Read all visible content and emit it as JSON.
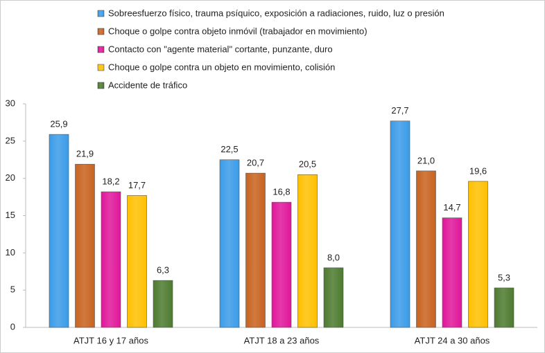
{
  "chart_data": {
    "type": "bar",
    "categories": [
      "ATJT 16 y 17 años",
      "ATJT 18 a 23 años",
      "ATJT 24 a 30 años"
    ],
    "series": [
      {
        "name": "Sobreesfuerzo físico, trauma psíquico, exposición a radiaciones, ruido, luz o presión",
        "color": "#3a9be8",
        "values": [
          25.9,
          22.5,
          27.7
        ],
        "value_labels": [
          "25,9",
          "22,5",
          "27,7"
        ]
      },
      {
        "name": "Choque o golpe contra objeto inmóvil  (trabajador en movimiento)",
        "color": "#c8621e",
        "values": [
          21.9,
          20.7,
          21.0
        ],
        "value_labels": [
          "21,9",
          "20,7",
          "21,0"
        ]
      },
      {
        "name": "Contacto con \"agente material\" cortante, punzante, duro",
        "color": "#e0169a",
        "values": [
          18.2,
          16.8,
          14.7
        ],
        "value_labels": [
          "18,2",
          "16,8",
          "14,7"
        ]
      },
      {
        "name": "Choque o golpe contra un objeto en movimiento, colisión",
        "color": "#ffc000",
        "values": [
          17.7,
          20.5,
          19.6
        ],
        "value_labels": [
          "17,7",
          "20,5",
          "19,6"
        ]
      },
      {
        "name": "Accidente de tráfico",
        "color": "#4d7a2f",
        "values": [
          6.3,
          8.0,
          5.3
        ],
        "value_labels": [
          "6,3",
          "8,0",
          "5,3"
        ]
      }
    ],
    "ylim": [
      0,
      30
    ],
    "yticks": [
      0,
      5,
      10,
      15,
      20,
      25,
      30
    ],
    "legend": "top-left"
  }
}
